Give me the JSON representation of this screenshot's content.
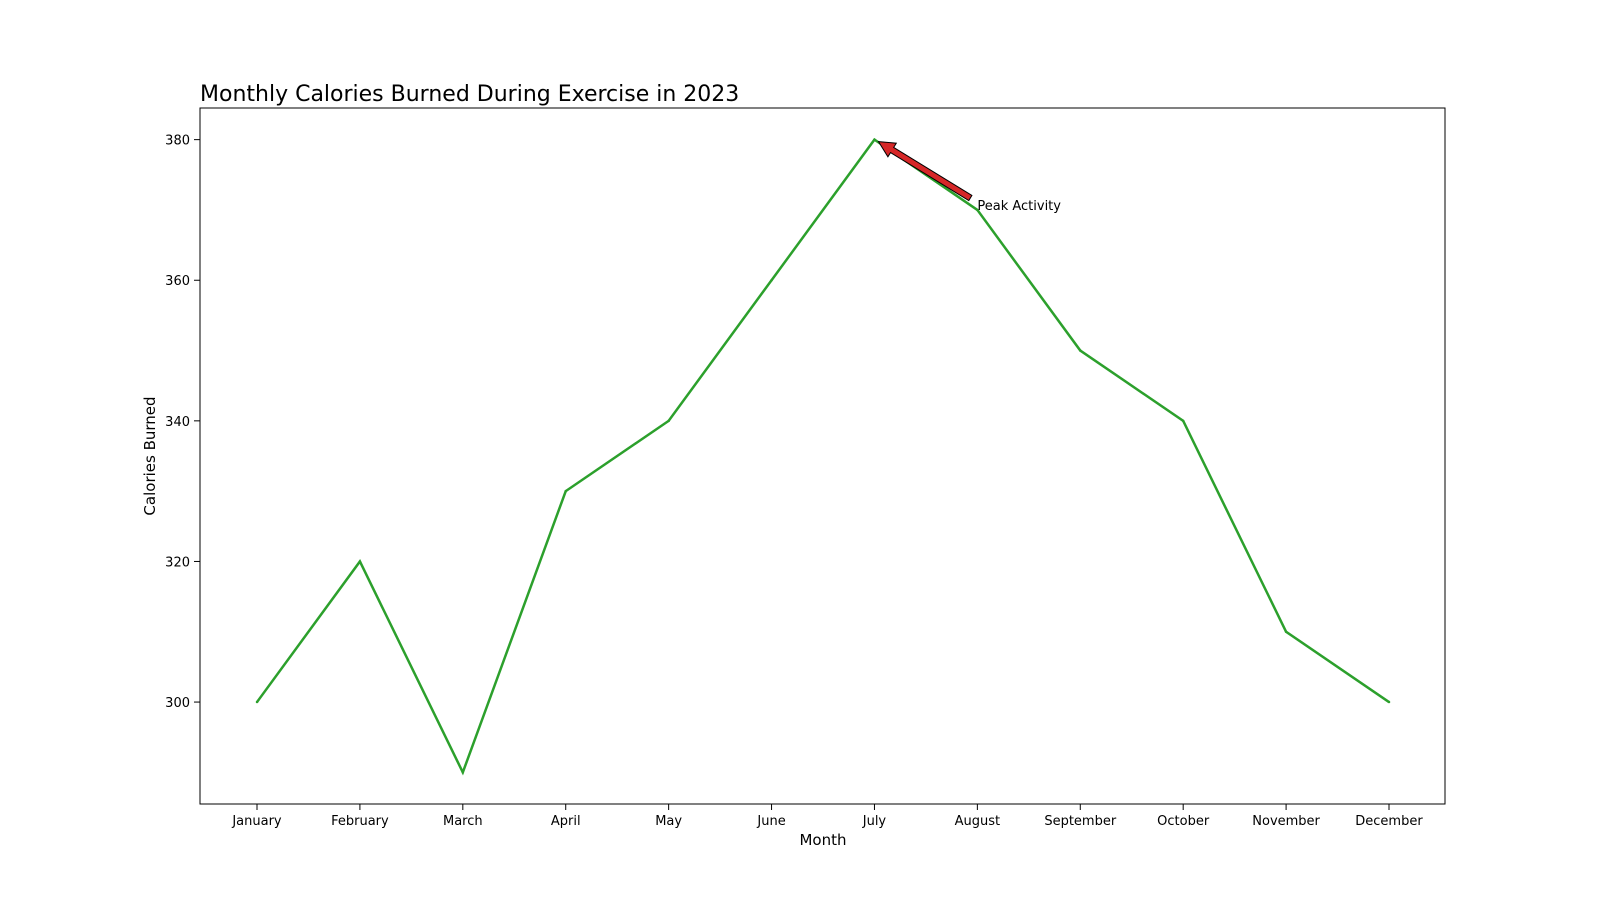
{
  "chart_data": {
    "type": "line",
    "title": "Monthly Calories Burned During Exercise in 2023",
    "xlabel": "Month",
    "ylabel": "Calories Burned",
    "categories": [
      "January",
      "February",
      "March",
      "April",
      "May",
      "June",
      "July",
      "August",
      "September",
      "October",
      "November",
      "December"
    ],
    "series": [
      {
        "values": [
          300,
          320,
          290,
          330,
          340,
          360,
          380,
          370,
          350,
          340,
          310,
          300
        ],
        "color": "#2ca02c"
      }
    ],
    "yticks": [
      300,
      320,
      340,
      360,
      380
    ],
    "ylim": [
      285.5,
      384.5
    ],
    "grid": false,
    "annotation": {
      "text": "Peak Activity",
      "point": {
        "x": "July",
        "y": 380
      },
      "text_at": {
        "x": "August",
        "y": 370
      },
      "arrow_color": "#d62728"
    }
  }
}
